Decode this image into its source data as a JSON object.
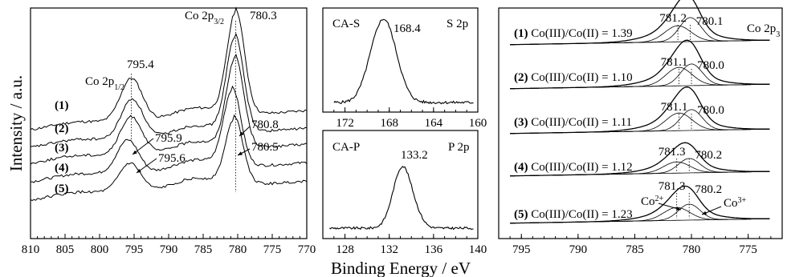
{
  "figure": {
    "ylabel": "Intensity / a.u.",
    "xlabel": "Binding Energy / eV"
  },
  "chart_data": [
    {
      "type": "line",
      "panel": "Co 2p stacked spectra",
      "xlim": [
        810,
        770
      ],
      "x_reversed": true,
      "xticks": [
        "810",
        "805",
        "800",
        "795",
        "790",
        "785",
        "780",
        "775",
        "770"
      ],
      "spectrum_labels": [
        "(1)",
        "(2)",
        "(3)",
        "(4)",
        "(5)"
      ],
      "peak_labels": {
        "co2p12": {
          "prefix": "Co 2p",
          "sub": "1/2",
          "value": "795.4",
          "x": 795.4
        },
        "co2p32": {
          "prefix": "Co 2p",
          "sub": "3/2",
          "value": "780.3",
          "x": 780.3
        },
        "p4_main": {
          "value": "780.8",
          "x": 780.8
        },
        "p5_main": {
          "value": "780.5",
          "x": 780.5
        },
        "p4_sat": {
          "value": "795.9",
          "x": 795.9
        },
        "p5_sat": {
          "value": "795.6",
          "x": 795.6
        }
      },
      "series": [
        {
          "label": "(1)",
          "p32": 780.3,
          "p12": 795.4
        },
        {
          "label": "(2)",
          "p32": 780.4,
          "p12": 795.3
        },
        {
          "label": "(3)",
          "p32": 780.4,
          "p12": 795.4
        },
        {
          "label": "(4)",
          "p32": 780.8,
          "p12": 795.9
        },
        {
          "label": "(5)",
          "p32": 780.5,
          "p12": 795.6
        }
      ]
    },
    {
      "type": "line",
      "panel": "S 2p",
      "title_left": "CA-S",
      "title_right": "S 2p",
      "peak_label": "168.4",
      "xlim": [
        174,
        160
      ],
      "x_reversed": true,
      "xticks": [
        "172",
        "168",
        "164",
        "160"
      ],
      "peak_x": 168.4
    },
    {
      "type": "line",
      "panel": "P 2p",
      "title_left": "CA-P",
      "title_right": "P 2p",
      "peak_label": "133.2",
      "xlim": [
        126,
        140
      ],
      "xticks": [
        "128",
        "132",
        "136",
        "140"
      ],
      "peak_x": 133.2
    },
    {
      "type": "line",
      "panel": "Co 2p3/2 deconvolution",
      "corner_label": {
        "prefix": "Co 2p",
        "sub": "3"
      },
      "xlim": [
        797,
        772
      ],
      "x_reversed": true,
      "xticks": [
        "795",
        "790",
        "785",
        "780",
        "775"
      ],
      "annotations": {
        "co2": {
          "prefix": "Co",
          "sup": "2+"
        },
        "co3": {
          "prefix": "Co",
          "sup": "3+"
        }
      },
      "series": [
        {
          "label": "(1)",
          "ratio_text": "Co(III)/Co(II) = 1.39",
          "peak_co2": "781.2",
          "peak_co3": "780.1",
          "co2_x": 781.2,
          "co3_x": 780.1
        },
        {
          "label": "(2)",
          "ratio_text": "Co(III)/Co(II) = 1.10",
          "peak_co2": "781.1",
          "peak_co3": "780.0",
          "co2_x": 781.1,
          "co3_x": 780.0
        },
        {
          "label": "(3)",
          "ratio_text": "Co(III)/Co(II) = 1.11",
          "peak_co2": "781.1",
          "peak_co3": "780.0",
          "co2_x": 781.1,
          "co3_x": 780.0
        },
        {
          "label": "(4)",
          "ratio_text": "Co(III)/Co(II) = 1.12",
          "peak_co2": "781.3",
          "peak_co3": "780.2",
          "co2_x": 781.3,
          "co3_x": 780.2
        },
        {
          "label": "(5)",
          "ratio_text": "Co(III)/Co(II) = 1.23",
          "peak_co2": "781.3",
          "peak_co3": "780.2",
          "co2_x": 781.3,
          "co3_x": 780.2
        }
      ]
    }
  ]
}
